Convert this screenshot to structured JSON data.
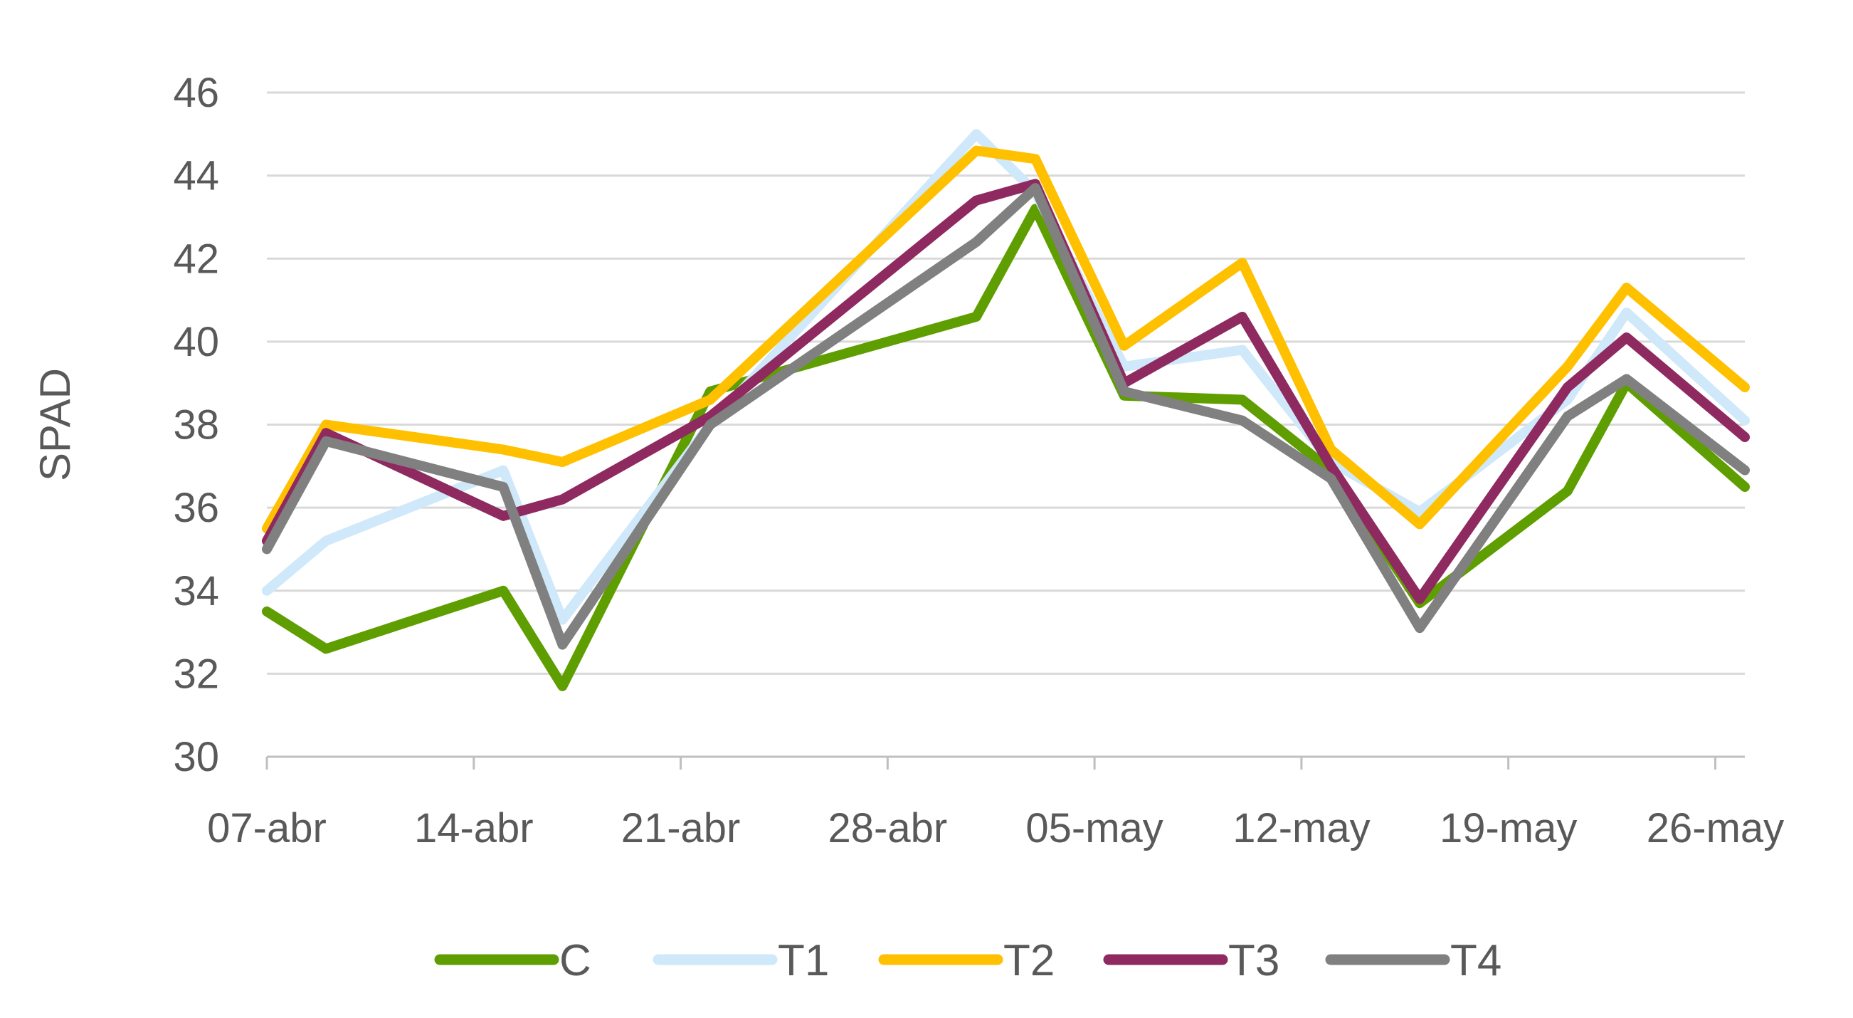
{
  "chart_data": {
    "type": "line",
    "ylabel": "SPAD",
    "ylim": [
      30,
      46
    ],
    "yticks": [
      30,
      32,
      34,
      36,
      38,
      40,
      42,
      44,
      46
    ],
    "x_range": [
      "2024-04-07",
      "2024-05-27"
    ],
    "x_ticks": [
      {
        "date": "2024-04-07",
        "label": "07-abr"
      },
      {
        "date": "2024-04-14",
        "label": "14-abr"
      },
      {
        "date": "2024-04-21",
        "label": "21-abr"
      },
      {
        "date": "2024-04-28",
        "label": "28-abr"
      },
      {
        "date": "2024-05-05",
        "label": "05-may"
      },
      {
        "date": "2024-05-12",
        "label": "12-may"
      },
      {
        "date": "2024-05-19",
        "label": "19-may"
      },
      {
        "date": "2024-05-26",
        "label": "26-may"
      }
    ],
    "x": [
      "2024-04-07",
      "2024-04-09",
      "2024-04-15",
      "2024-04-17",
      "2024-04-22",
      "2024-05-01",
      "2024-05-03",
      "2024-05-06",
      "2024-05-10",
      "2024-05-13",
      "2024-05-16",
      "2024-05-21",
      "2024-05-23",
      "2024-05-27"
    ],
    "grid": true,
    "legend_position": "bottom",
    "series": [
      {
        "name": "C",
        "color": "#5f9e00",
        "values": [
          33.5,
          32.6,
          34.0,
          31.7,
          38.8,
          40.6,
          43.2,
          38.7,
          38.6,
          36.9,
          33.7,
          36.4,
          39.0,
          36.5
        ]
      },
      {
        "name": "T1",
        "color": "#cfe8fa",
        "values": [
          34.0,
          35.2,
          36.9,
          33.3,
          38.0,
          45.0,
          43.6,
          39.4,
          39.8,
          37.1,
          35.9,
          38.6,
          40.7,
          38.1
        ]
      },
      {
        "name": "T2",
        "color": "#ffc000",
        "values": [
          35.5,
          38.0,
          37.4,
          37.1,
          38.6,
          44.6,
          44.4,
          39.9,
          41.9,
          37.4,
          35.6,
          39.4,
          41.3,
          38.9
        ]
      },
      {
        "name": "T3",
        "color": "#8e2a60",
        "values": [
          35.2,
          37.8,
          35.8,
          36.2,
          38.2,
          43.4,
          43.8,
          39.0,
          40.6,
          37.0,
          33.8,
          38.9,
          40.1,
          37.7
        ]
      },
      {
        "name": "T4",
        "color": "#808080",
        "values": [
          35.0,
          37.6,
          36.5,
          32.7,
          38.0,
          42.4,
          43.7,
          38.8,
          38.1,
          36.7,
          33.1,
          38.2,
          39.1,
          36.9
        ]
      }
    ]
  }
}
